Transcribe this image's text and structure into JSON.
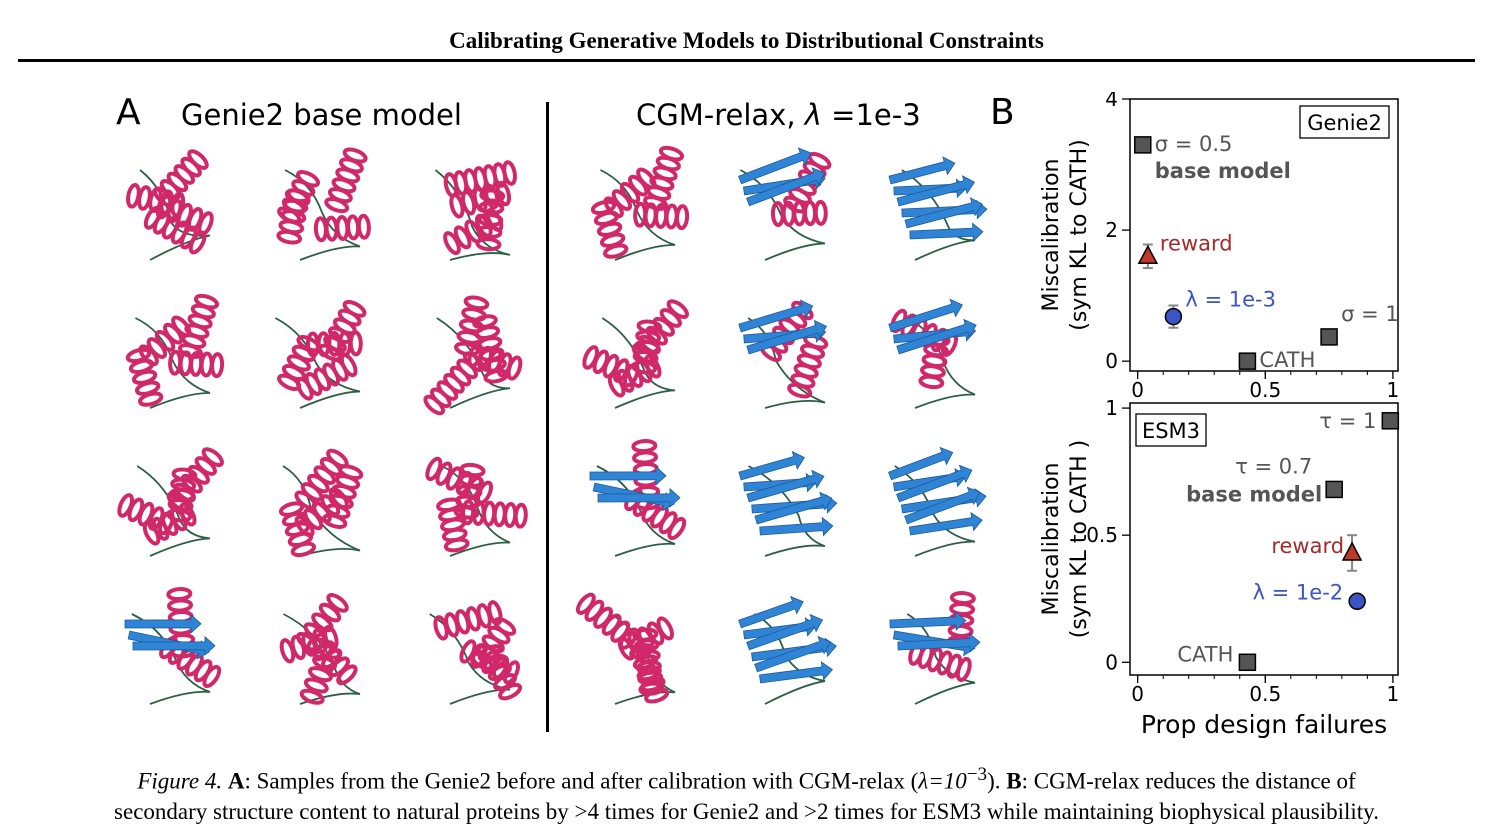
{
  "header": {
    "title": "Calibrating Generative Models to Distributional Constraints"
  },
  "panel_a": {
    "letter": "A",
    "left_title": "Genie2 base model",
    "right_title_prefix": "CGM-relax, ",
    "right_title_lambda": "λ",
    "right_title_suffix": " =1e-3",
    "left_structures": [
      {
        "type": "helix"
      },
      {
        "type": "helix"
      },
      {
        "type": "helix"
      },
      {
        "type": "helix"
      },
      {
        "type": "helix"
      },
      {
        "type": "helix"
      },
      {
        "type": "helix"
      },
      {
        "type": "helix"
      },
      {
        "type": "helix"
      },
      {
        "type": "mixed"
      },
      {
        "type": "helix"
      },
      {
        "type": "helix"
      }
    ],
    "right_structures": [
      {
        "type": "helix"
      },
      {
        "type": "mixed"
      },
      {
        "type": "sheet"
      },
      {
        "type": "helix"
      },
      {
        "type": "mixed"
      },
      {
        "type": "mixed"
      },
      {
        "type": "mixed"
      },
      {
        "type": "sheet"
      },
      {
        "type": "sheet"
      },
      {
        "type": "helix"
      },
      {
        "type": "sheet"
      },
      {
        "type": "mixed"
      }
    ],
    "colors": {
      "helix": "#d1286a",
      "sheet": "#2f84d6",
      "loop": "#2c5f44"
    }
  },
  "panel_b": {
    "letter": "B"
  },
  "chart_data": [
    {
      "type": "scatter",
      "title": "",
      "box_label": "Genie2",
      "ylabel": "Miscalibration\n(sym KL to CATH)",
      "xlabel": "",
      "xlim": [
        -0.03,
        1.02
      ],
      "ylim": [
        -0.15,
        4.0
      ],
      "xticks": [
        "0",
        "0.5",
        "1"
      ],
      "yticks": [
        "0",
        "2",
        "4"
      ],
      "points": [
        {
          "label": "σ = 0.5",
          "sublabel": "base model",
          "x": 0.02,
          "y": 3.3,
          "marker": "square",
          "color": "#555555"
        },
        {
          "label": "reward",
          "x": 0.04,
          "y": 1.6,
          "yerr": 0.18,
          "marker": "triangle",
          "color": "#c0392b"
        },
        {
          "label": "λ = 1e-3",
          "x": 0.14,
          "y": 0.68,
          "yerr": 0.17,
          "marker": "circle",
          "color": "#3b55c4"
        },
        {
          "label": "σ = 1",
          "x": 0.75,
          "y": 0.37,
          "marker": "square",
          "color": "#555555"
        },
        {
          "label": "CATH",
          "x": 0.43,
          "y": 0.0,
          "marker": "square",
          "color": "#555555"
        }
      ]
    },
    {
      "type": "scatter",
      "title": "",
      "box_label": "ESM3",
      "ylabel": "Miscalibration\n(sym KL to CATH )",
      "xlabel": "Prop design failures",
      "xlim": [
        -0.03,
        1.02
      ],
      "ylim": [
        -0.05,
        1.02
      ],
      "xticks": [
        "0",
        "0.5",
        "1"
      ],
      "yticks": [
        "0",
        "0.5",
        "1"
      ],
      "points": [
        {
          "label": "τ = 1",
          "x": 0.99,
          "y": 0.95,
          "marker": "square",
          "color": "#555555"
        },
        {
          "label": "τ = 0.7",
          "sublabel": "base model",
          "x": 0.77,
          "y": 0.68,
          "marker": "square",
          "color": "#555555"
        },
        {
          "label": "reward",
          "x": 0.84,
          "y": 0.43,
          "yerr": 0.07,
          "marker": "triangle",
          "color": "#c0392b"
        },
        {
          "label": "λ = 1e-2",
          "x": 0.86,
          "y": 0.24,
          "marker": "circle",
          "color": "#3b55c4"
        },
        {
          "label": "CATH",
          "x": 0.43,
          "y": 0.0,
          "marker": "square",
          "color": "#555555"
        }
      ]
    }
  ],
  "caption": {
    "fig_label": "Figure 4.",
    "a_bold": "A",
    "a_text": ": Samples from the Genie2 before and after calibration with CGM-relax (",
    "a_math": "λ=10",
    "a_exp": "−3",
    "a_close": "). ",
    "b_bold": "B",
    "b_text": ": CGM-relax reduces the distance of",
    "line2": "secondary structure content to natural proteins by >4 times for Genie2 and >2 times for ESM3 while maintaining biophysical plausibility."
  }
}
